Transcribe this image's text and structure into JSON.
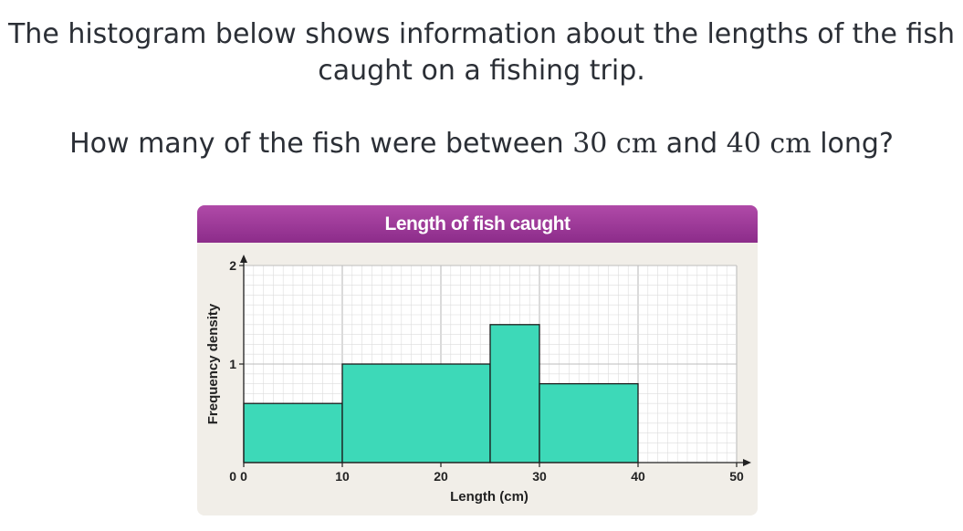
{
  "question": {
    "line1": "The histogram below shows information about the lengths of the fish",
    "line2": "caught on a fishing trip.",
    "q_prefix": "How many of the fish were between ",
    "q_val1": "30 cm",
    "q_mid": " and ",
    "q_val2": "40 cm",
    "q_suffix": " long?"
  },
  "chart_data": {
    "type": "bar",
    "title": "Length of fish caught",
    "xlabel": "Length (cm)",
    "ylabel": "Frequency density",
    "xlim": [
      0,
      50
    ],
    "ylim": [
      0,
      2
    ],
    "x_ticks": [
      0,
      10,
      20,
      30,
      40,
      50
    ],
    "y_ticks": [
      1,
      2
    ],
    "grid": true,
    "bins": [
      {
        "from": 0,
        "to": 10,
        "frequency_density": 0.6
      },
      {
        "from": 10,
        "to": 25,
        "frequency_density": 1.0
      },
      {
        "from": 25,
        "to": 30,
        "frequency_density": 1.4
      },
      {
        "from": 30,
        "to": 40,
        "frequency_density": 0.8
      }
    ],
    "colors": {
      "bar_fill": "#3dd9b8",
      "bar_stroke": "#1a1a1a",
      "header": "#9e3a9b",
      "grid_major": "#bdbdbd",
      "grid_minor": "#dcdcdc"
    }
  }
}
